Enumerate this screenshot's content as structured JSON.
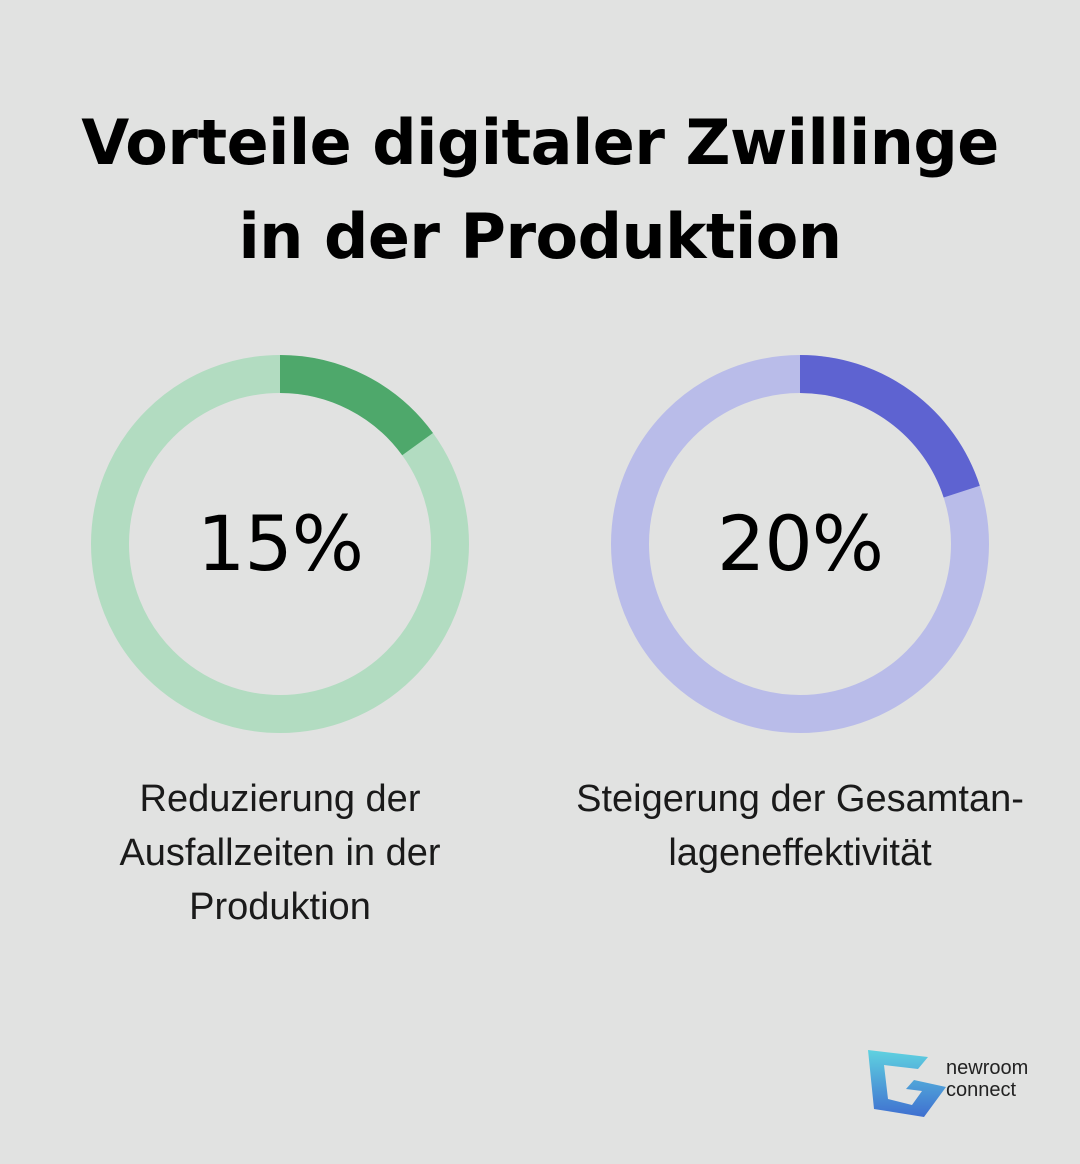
{
  "title": {
    "line1": "Vorteile digitaler Zwillinge",
    "line2": "in der Produktion"
  },
  "chart_data": [
    {
      "type": "pie",
      "variant": "donut",
      "value_percent": 15,
      "label": "15%",
      "caption_lines": [
        "Reduzierung der",
        "Ausfallzeiten in der",
        "Produktion"
      ],
      "colors": {
        "filled": "#4ea86b",
        "track": "#b2dcc1"
      }
    },
    {
      "type": "pie",
      "variant": "donut",
      "value_percent": 20,
      "label": "20%",
      "caption_lines": [
        "Steigerung der Gesamtan-",
        "lageneffektivität"
      ],
      "colors": {
        "filled": "#5e63d1",
        "track": "#b9bce9"
      }
    }
  ],
  "logo": {
    "line1": "newroom",
    "line2": "connect",
    "colors": {
      "top": "#5fd2e0",
      "bottom": "#3f6fd0"
    }
  }
}
